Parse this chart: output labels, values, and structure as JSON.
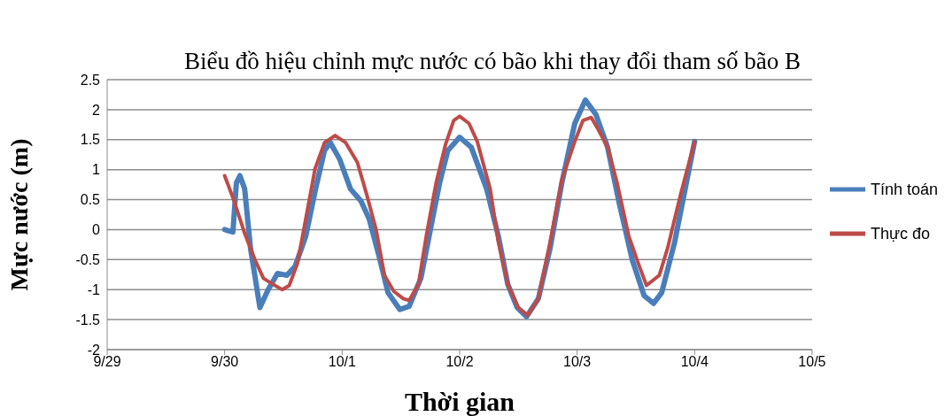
{
  "chart_data": {
    "type": "line",
    "title": "Biểu đồ hiệu chỉnh mực nước có bão khi thay đổi tham số bão B",
    "xlabel": "Thời gian",
    "ylabel": "Mực nước (m)",
    "xlim": [
      "--09-29",
      "--10-05"
    ],
    "xticks": [
      {
        "value": "--09-29",
        "label": "9/29"
      },
      {
        "value": "--09-30",
        "label": "9/30"
      },
      {
        "value": "--10-01",
        "label": "10/1"
      },
      {
        "value": "--10-02",
        "label": "10/2"
      },
      {
        "value": "--10-03",
        "label": "10/3"
      },
      {
        "value": "--10-04",
        "label": "10/4"
      },
      {
        "value": "--10-05",
        "label": "10/5"
      }
    ],
    "ylim": [
      -2,
      2.5
    ],
    "yticks": [
      -2,
      -1.5,
      -1,
      -0.5,
      0,
      0.5,
      1,
      1.5,
      2,
      2.5
    ],
    "grid": "y",
    "legend": "right",
    "marker": "none",
    "line_style": "solid",
    "series": [
      {
        "name": "Tính toán",
        "color": "#4a7ebb",
        "x": [
          "--09-30T00:00",
          "--09-30T01:41",
          "--09-30T02:24",
          "--09-30T03:07",
          "--09-30T04:05",
          "--09-30T05:17",
          "--09-30T07:12",
          "--09-30T08:53",
          "--09-30T10:48",
          "--09-30T12:43",
          "--09-30T14:24",
          "--09-30T16:34",
          "--09-30T18:43",
          "--09-30T20:24",
          "--09-30T21:36",
          "--09-30T23:31",
          "--10-01T01:41",
          "--10-01T03:50",
          "--10-01T05:31",
          "--10-01T07:26",
          "--10-01T09:22",
          "--10-01T11:46",
          "--10-01T13:41",
          "--10-01T16:05",
          "--10-01T18:00",
          "--10-01T19:55",
          "--10-01T21:36",
          "--10-02T00:00",
          "--10-02T02:24",
          "--10-02T05:31",
          "--10-02T07:55",
          "--10-02T09:50",
          "--10-02T11:46",
          "--10-02T13:41",
          "--10-02T16:05",
          "--10-02T18:29",
          "--10-02T20:53",
          "--10-02T23:31",
          "--10-03T01:41",
          "--10-03T03:50",
          "--10-03T06:14",
          "--10-03T08:38",
          "--10-03T11:17",
          "--10-03T13:41",
          "--10-03T15:36",
          "--10-03T17:17",
          "--10-03T19:55",
          "--10-03T22:19",
          "--10-04T00:00"
        ],
        "values": [
          0,
          -0.04,
          0.78,
          0.9,
          0.68,
          -0.31,
          -1.3,
          -1.0,
          -0.73,
          -0.76,
          -0.61,
          -0.11,
          0.73,
          1.32,
          1.45,
          1.17,
          0.68,
          0.48,
          0.18,
          -0.41,
          -1.05,
          -1.33,
          -1.28,
          -0.81,
          -0.01,
          0.78,
          1.32,
          1.54,
          1.37,
          0.68,
          -0.11,
          -0.91,
          -1.3,
          -1.45,
          -1.15,
          -0.31,
          0.78,
          1.77,
          2.16,
          1.92,
          1.37,
          0.43,
          -0.51,
          -1.1,
          -1.23,
          -1.05,
          -0.21,
          0.78,
          1.47
        ]
      },
      {
        "name": "Thực đo",
        "color": "#be4b48",
        "x": [
          "--09-30T00:00",
          "--09-30T01:55",
          "--09-30T04:05",
          "--09-30T06:14",
          "--09-30T07:55",
          "--09-30T09:50",
          "--09-30T11:46",
          "--09-30T13:12",
          "--09-30T14:53",
          "--09-30T16:34",
          "--09-30T18:29",
          "--09-30T20:24",
          "--09-30T22:34",
          "--10-01T00:43",
          "--10-01T03:07",
          "--10-01T05:02",
          "--10-01T06:58",
          "--10-01T08:38",
          "--10-01T10:34",
          "--10-01T12:29",
          "--10-01T13:41",
          "--10-01T15:36",
          "--10-01T17:17",
          "--10-01T19:12",
          "--10-01T21:07",
          "--10-01T22:48",
          "--10-02T00:00",
          "--10-02T01:55",
          "--10-02T03:36",
          "--10-02T06:14",
          "--10-02T07:55",
          "--10-02T09:50",
          "--10-02T12:00",
          "--10-02T13:55",
          "--10-02T16:05",
          "--10-02T18:29",
          "--10-02T20:53",
          "--10-02T23:31",
          "--10-03T01:12",
          "--10-03T02:53",
          "--10-03T04:19",
          "--10-03T06:14",
          "--10-03T08:10",
          "--10-03T10:34",
          "--10-03T12:29",
          "--10-03T14:10",
          "--10-03T16:48",
          "--10-03T18:29",
          "--10-03T21:07",
          "--10-04T00:00"
        ],
        "values": [
          0.9,
          0.48,
          -0.06,
          -0.51,
          -0.81,
          -0.91,
          -1.0,
          -0.93,
          -0.56,
          0.18,
          1.02,
          1.45,
          1.57,
          1.45,
          1.12,
          0.58,
          -0.01,
          -0.76,
          -1.03,
          -1.15,
          -1.18,
          -0.91,
          -0.06,
          0.78,
          1.42,
          1.82,
          1.89,
          1.77,
          1.47,
          0.68,
          -0.21,
          -0.91,
          -1.3,
          -1.43,
          -1.15,
          -0.21,
          0.83,
          1.47,
          1.82,
          1.87,
          1.67,
          1.37,
          0.78,
          -0.11,
          -0.56,
          -0.93,
          -0.76,
          -0.31,
          0.58,
          1.47
        ]
      }
    ]
  }
}
